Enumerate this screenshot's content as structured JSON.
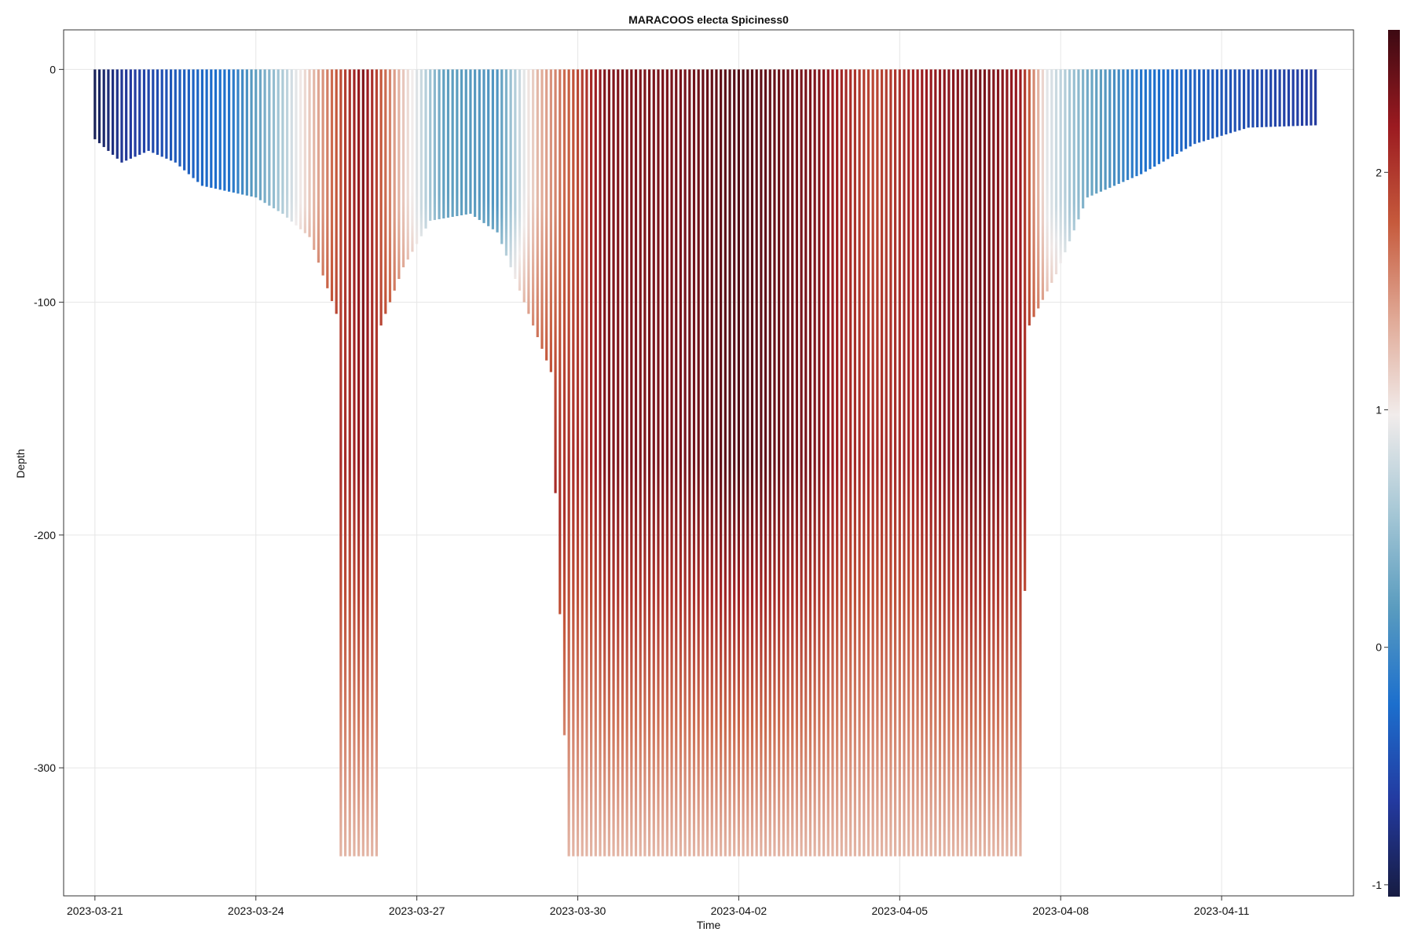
{
  "chart_data": {
    "type": "heatmap",
    "title": "MARACOOS electa Spiciness0",
    "xlabel": "Time",
    "ylabel": "Depth",
    "x_range": [
      "2023-03-20T10:00",
      "2023-04-13T11:00"
    ],
    "y_range": [
      -355,
      17
    ],
    "x_ticks": [
      "2023-03-21",
      "2023-03-24",
      "2023-03-27",
      "2023-03-30",
      "2023-04-02",
      "2023-04-05",
      "2023-04-08",
      "2023-04-11"
    ],
    "y_ticks": [
      0,
      -100,
      -200,
      -300
    ],
    "grid": true,
    "colorbar": {
      "colormap": "balance",
      "range": [
        -1.05,
        2.6
      ],
      "ticks": [
        2,
        1,
        0,
        -1
      ],
      "colors": [
        "#171c42",
        "#233aa0",
        "#1c6fcd",
        "#5a9cbf",
        "#a7c8d6",
        "#f1eceb",
        "#e0a996",
        "#c65a3c",
        "#9b1a20",
        "#3c0912"
      ]
    },
    "max_depth_profile": [
      {
        "t": "2023-03-21T00:00",
        "max_depth": -30
      },
      {
        "t": "2023-03-21T12:00",
        "max_depth": -40
      },
      {
        "t": "2023-03-22T00:00",
        "max_depth": -35
      },
      {
        "t": "2023-03-22T12:00",
        "max_depth": -40
      },
      {
        "t": "2023-03-23T00:00",
        "max_depth": -50
      },
      {
        "t": "2023-03-24T00:00",
        "max_depth": -55
      },
      {
        "t": "2023-03-24T12:00",
        "max_depth": -62
      },
      {
        "t": "2023-03-25T00:00",
        "max_depth": -72
      },
      {
        "t": "2023-03-25T12:00",
        "max_depth": -105
      },
      {
        "t": "2023-03-25T14:00",
        "max_depth": -338
      },
      {
        "t": "2023-03-26T06:00",
        "max_depth": -338
      },
      {
        "t": "2023-03-26T08:00",
        "max_depth": -110
      },
      {
        "t": "2023-03-26T18:00",
        "max_depth": -85
      },
      {
        "t": "2023-03-27T06:00",
        "max_depth": -65
      },
      {
        "t": "2023-03-28T00:00",
        "max_depth": -62
      },
      {
        "t": "2023-03-28T12:00",
        "max_depth": -70
      },
      {
        "t": "2023-03-29T00:00",
        "max_depth": -100
      },
      {
        "t": "2023-03-29T12:00",
        "max_depth": -130
      },
      {
        "t": "2023-03-29T20:00",
        "max_depth": -338
      },
      {
        "t": "2023-04-07T06:00",
        "max_depth": -338
      },
      {
        "t": "2023-04-07T10:00",
        "max_depth": -110
      },
      {
        "t": "2023-04-07T22:00",
        "max_depth": -88
      },
      {
        "t": "2023-04-08T12:00",
        "max_depth": -55
      },
      {
        "t": "2023-04-09T12:00",
        "max_depth": -45
      },
      {
        "t": "2023-04-10T12:00",
        "max_depth": -32
      },
      {
        "t": "2023-04-11T12:00",
        "max_depth": -25
      },
      {
        "t": "2023-04-12T18:00",
        "max_depth": -24
      }
    ],
    "spiciness_surface_profile": [
      {
        "t": "2023-03-21T00:00",
        "value": -0.95
      },
      {
        "t": "2023-03-21T12:00",
        "value": -0.7
      },
      {
        "t": "2023-03-22T12:00",
        "value": -0.4
      },
      {
        "t": "2023-03-23T12:00",
        "value": -0.2
      },
      {
        "t": "2023-03-24T12:00",
        "value": 0.6
      },
      {
        "t": "2023-03-25T12:00",
        "value": 1.8
      },
      {
        "t": "2023-03-26T00:00",
        "value": 2.3
      },
      {
        "t": "2023-03-26T18:00",
        "value": 1.2
      },
      {
        "t": "2023-03-27T12:00",
        "value": 0.2
      },
      {
        "t": "2023-03-28T12:00",
        "value": 0.1
      },
      {
        "t": "2023-03-29T06:00",
        "value": 1.3
      },
      {
        "t": "2023-03-30T12:00",
        "value": 2.3
      },
      {
        "t": "2023-04-01T00:00",
        "value": 2.35
      },
      {
        "t": "2023-04-02T00:00",
        "value": 2.5
      },
      {
        "t": "2023-04-03T12:00",
        "value": 2.3
      },
      {
        "t": "2023-04-04T12:00",
        "value": 1.9
      },
      {
        "t": "2023-04-05T12:00",
        "value": 2.2
      },
      {
        "t": "2023-04-06T12:00",
        "value": 2.35
      },
      {
        "t": "2023-04-07T06:00",
        "value": 2.2
      },
      {
        "t": "2023-04-07T18:00",
        "value": 0.9
      },
      {
        "t": "2023-04-08T12:00",
        "value": 0.3
      },
      {
        "t": "2023-04-09T12:00",
        "value": -0.2
      },
      {
        "t": "2023-04-10T12:00",
        "value": -0.35
      },
      {
        "t": "2023-04-11T12:00",
        "value": -0.5
      },
      {
        "t": "2023-04-12T18:00",
        "value": -0.65
      }
    ],
    "deep_value": 1.3
  }
}
